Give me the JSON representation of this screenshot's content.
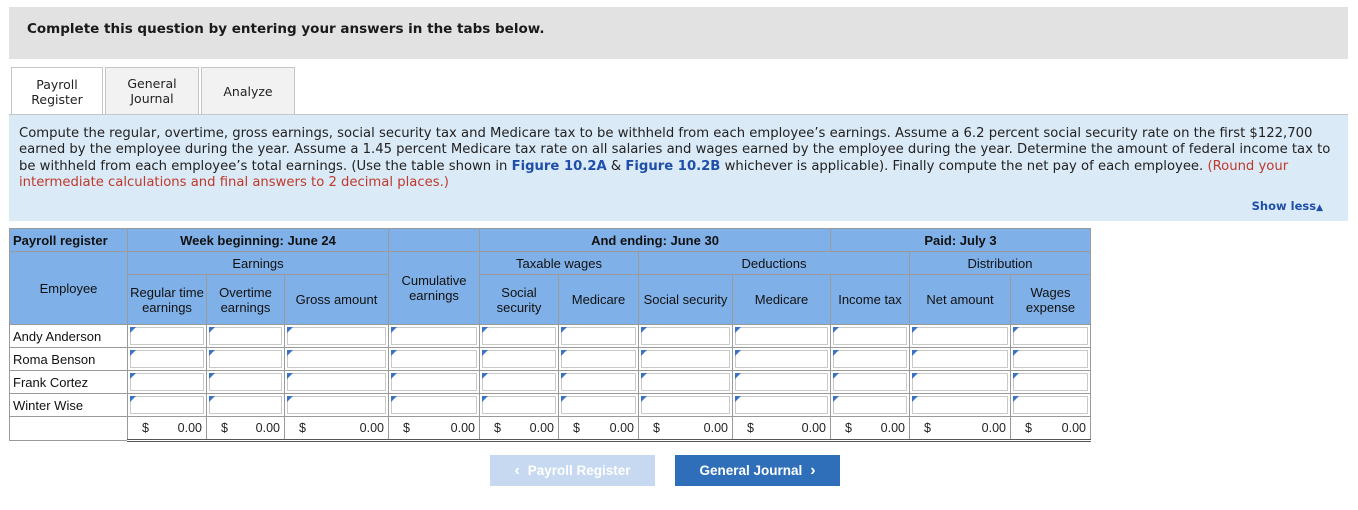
{
  "header": {
    "text": "Complete this question by entering your answers in the tabs below."
  },
  "tabs": [
    {
      "label": "Payroll\nRegister",
      "line1": "Payroll",
      "line2": "Register",
      "active": true
    },
    {
      "label": "General\nJournal",
      "line1": "General",
      "line2": "Journal",
      "active": false
    },
    {
      "label": "Analyze",
      "line1": "Analyze",
      "line2": "",
      "active": false
    }
  ],
  "instructions": {
    "part1": "Compute the regular, overtime, gross earnings, social security tax and Medicare tax to be withheld from each employee’s earnings. Assume a 6.2 percent social security rate on the first $122,700 earned by the employee during the year. Assume a 1.45 percent Medicare tax rate on all salaries and wages earned by the employee during the year. Determine the amount of federal income tax to be withheld from each employee’s total earnings. (Use the table shown in ",
    "fig1": "Figure 10.2A",
    "amp": " & ",
    "fig2": "Figure 10.2B",
    "part2": " whichever is applicable). Finally compute the net pay of each employee. ",
    "note": "(Round your intermediate calculations and final answers to 2 decimal places.)"
  },
  "show_less": "Show less",
  "register": {
    "title": "Payroll register",
    "week_beginning": "Week beginning: June 24",
    "and_ending": "And ending: June 30",
    "paid": "Paid: July 3",
    "employee_header": "Employee",
    "earnings_header": "Earnings",
    "taxable_header": "Taxable wages",
    "deductions_header": "Deductions",
    "distribution_header": "Distribution",
    "cols": {
      "regular": "Regular time earnings",
      "overtime": "Overtime earnings",
      "gross": "Gross amount",
      "cumulative": "Cumulative earnings",
      "tw_ss": "Social security",
      "tw_med": "Medicare",
      "d_ss": "Social security",
      "d_med": "Medicare",
      "income_tax": "Income tax",
      "net": "Net amount",
      "wages": "Wages expense"
    },
    "employees": [
      "Andy Anderson",
      "Roma Benson",
      "Frank Cortez",
      "Winter Wise"
    ],
    "currency": "$",
    "totals": [
      "0.00",
      "0.00",
      "0.00",
      "0.00",
      "0.00",
      "0.00",
      "0.00",
      "0.00",
      "0.00",
      "0.00",
      "0.00"
    ]
  },
  "nav": {
    "prev_label": "Payroll Register",
    "next_label": "General Journal"
  }
}
